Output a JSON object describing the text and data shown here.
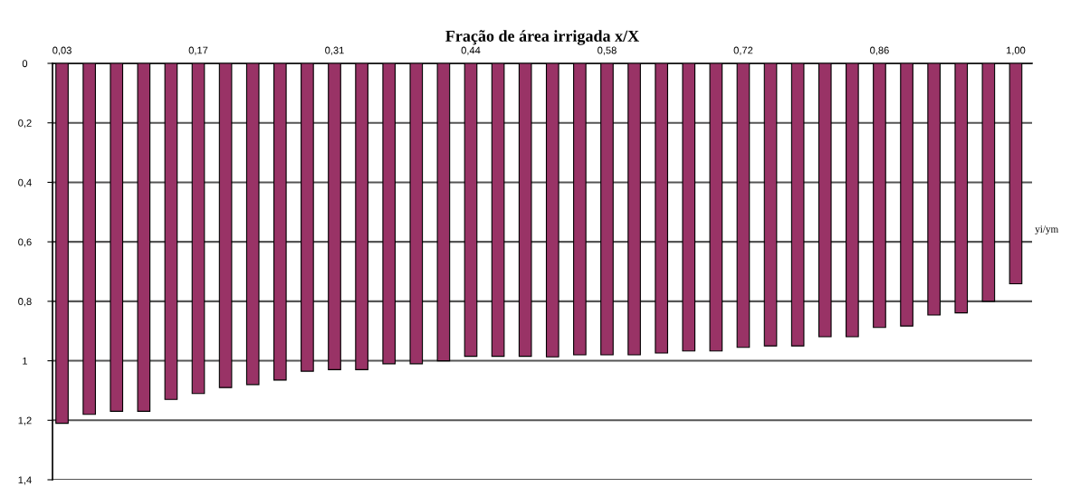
{
  "chart_data": {
    "type": "bar",
    "xlabel": "Fração de área irrigada x/X",
    "ylabel": "yi/ym",
    "categories": [
      "0,03",
      null,
      null,
      null,
      null,
      "0,17",
      null,
      null,
      null,
      null,
      "0,31",
      null,
      null,
      null,
      null,
      "0,44",
      null,
      null,
      null,
      null,
      "0,58",
      null,
      null,
      null,
      null,
      "0,72",
      null,
      null,
      null,
      null,
      "0,86",
      null,
      null,
      null,
      null,
      "1,00"
    ],
    "series": [
      {
        "color": "#993366",
        "values": [
          1.21,
          1.18,
          1.17,
          1.17,
          1.13,
          1.11,
          1.09,
          1.08,
          1.065,
          1.035,
          1.03,
          1.03,
          1.01,
          1.01,
          1.0,
          0.985,
          0.985,
          0.985,
          0.987,
          0.98,
          0.98,
          0.98,
          0.974,
          0.967,
          0.967,
          0.955,
          0.95,
          0.95,
          0.919,
          0.919,
          0.888,
          0.883,
          0.846,
          0.839,
          0.8,
          0.741
        ]
      }
    ],
    "ylim": [
      1.4,
      0
    ],
    "yticks": [
      0,
      {
        "value": 0.2,
        "label": "0,2"
      },
      {
        "value": 0.4,
        "label": "0,4"
      },
      {
        "value": 0.6,
        "label": "0,6"
      },
      {
        "value": 0.8,
        "label": "0,8"
      },
      1,
      {
        "value": 1.2,
        "label": "1,2"
      },
      {
        "value": 1.4,
        "label": "1,4"
      }
    ],
    "grid": "y"
  }
}
